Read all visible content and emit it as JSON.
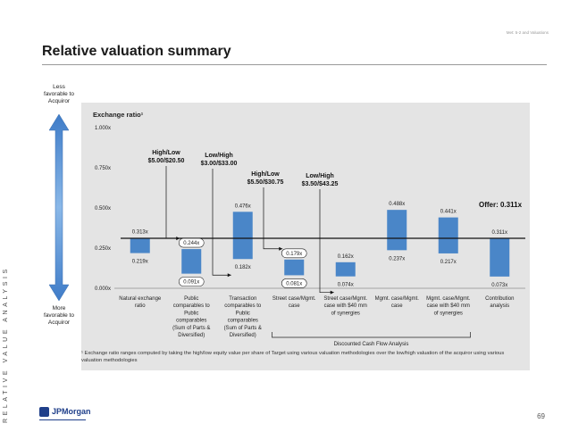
{
  "header": {
    "tag": "Met: 5-2 and Valuations",
    "title": "Relative valuation summary"
  },
  "side_label": "RELATIVE VALUE ANALYSIS",
  "arrow": {
    "top_label": "Less favorable to Acquiror",
    "bottom_label": "More favorable to Acquiror"
  },
  "chart_data": {
    "type": "bar",
    "title": "Exchange ratio¹",
    "ylim": [
      0,
      1.0
    ],
    "yticks": [
      "0.000x",
      "0.250x",
      "0.500x",
      "0.750x",
      "1.000x"
    ],
    "categories": [
      "Natural exchange ratio",
      "Public comparables to Public comparables (Sum of Parts & Diversified)",
      "Transaction comparables to Public comparables (Sum of Parts & Diversified)",
      "Street case/Mgmt. case",
      "Street case/Mgmt. case with $40 mm of synergies",
      "Mgmt. case/Mgmt. case",
      "Mgmt. case/Mgmt. case with $40 mm of synergies",
      "Contribution analysis"
    ],
    "category_lines": [
      [
        "Natural exchange",
        "ratio"
      ],
      [
        "Public",
        "comparables to",
        "Public",
        "comparables",
        "(Sum of Parts &",
        "Diversified)"
      ],
      [
        "Transaction",
        "comparables to",
        "Public",
        "comparables",
        "(Sum of Parts &",
        "Diversified)"
      ],
      [
        "Street case/Mgmt.",
        "case"
      ],
      [
        "Street case/Mgmt.",
        "case with $40 mm",
        "of synergies"
      ],
      [
        "Mgmt. case/Mgmt.",
        "case"
      ],
      [
        "Mgmt. case/Mgmt.",
        "case with $40 mm",
        "of synergies"
      ],
      [
        "Contribution",
        "analysis"
      ]
    ],
    "low": [
      0.219,
      0.091,
      0.182,
      0.081,
      0.074,
      0.237,
      0.217,
      0.073
    ],
    "high": [
      0.313,
      0.244,
      0.476,
      0.179,
      0.162,
      0.488,
      0.441,
      0.311
    ],
    "low_labels": [
      "0.219x",
      "0.091x",
      "0.182x",
      "0.081x",
      "0.074x",
      "0.237x",
      "0.217x",
      "0.073x"
    ],
    "high_labels": [
      "0.313x",
      "0.244x",
      "0.476x",
      "0.179x",
      "0.162x",
      "0.488x",
      "0.441x",
      "0.311x"
    ],
    "offer": {
      "value": 0.311,
      "label": "Offer: 0.311x"
    },
    "annotations": [
      {
        "line1": "High/Low",
        "line2": "$5.00/$20.50"
      },
      {
        "line1": "Low/High",
        "line2": "$3.00/$33.00"
      },
      {
        "line1": "High/Low",
        "line2": "$5.50/$30.75"
      },
      {
        "line1": "Low/High",
        "line2": "$3.50/$43.25"
      }
    ],
    "bracket_label": "Discounted Cash Flow Analysis",
    "bar_color": "#4a86c8"
  },
  "footnote": "¹ Exchange ratio ranges computed by taking the high/low equity value per share of Target using various valuation methodologies over the low/high valuation of the acquiror using various valuation methodologies",
  "footer": {
    "logo_text": "JPMorgan",
    "page_number": "69"
  }
}
